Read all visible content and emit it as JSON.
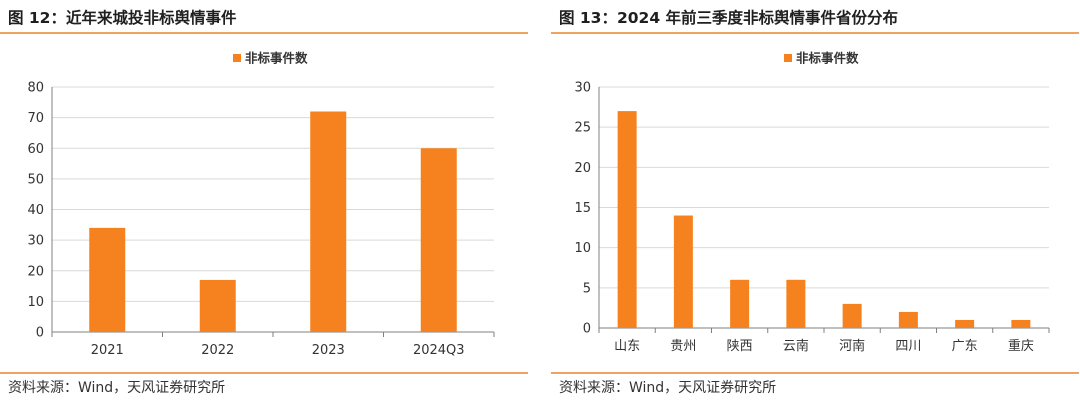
{
  "left_panel": {
    "title": "图 12：近年来城投非标舆情事件",
    "source": "资料来源：Wind，天风证券研究所"
  },
  "right_panel": {
    "title": "图 13：2024 年前三季度非标舆情事件省份分布",
    "source": "资料来源：Wind，天风证券研究所"
  },
  "colors": {
    "bar": "#f5821f",
    "grid": "#d9d9d9",
    "axis": "#808080",
    "rule": "#f0a260"
  },
  "chart_data": [
    {
      "type": "bar",
      "title": "",
      "categories": [
        "2021",
        "2022",
        "2023",
        "2024Q3"
      ],
      "series": [
        {
          "name": "非标事件数",
          "values": [
            34,
            17,
            72,
            60
          ]
        }
      ],
      "xlabel": "",
      "ylabel": "",
      "ylim": [
        0,
        80
      ],
      "yticks": [
        "0",
        "10",
        "20",
        "30",
        "40",
        "50",
        "60",
        "70",
        "80"
      ],
      "grid": true,
      "legend": "top-center"
    },
    {
      "type": "bar",
      "title": "",
      "categories": [
        "山东",
        "贵州",
        "陕西",
        "云南",
        "河南",
        "四川",
        "广东",
        "重庆"
      ],
      "series": [
        {
          "name": "非标事件数",
          "values": [
            27,
            14,
            6,
            6,
            3,
            2,
            1,
            1
          ]
        }
      ],
      "xlabel": "",
      "ylabel": "",
      "ylim": [
        0,
        30
      ],
      "yticks": [
        "0",
        "5",
        "10",
        "15",
        "20",
        "25",
        "30"
      ],
      "grid": true,
      "legend": "top-center"
    }
  ]
}
